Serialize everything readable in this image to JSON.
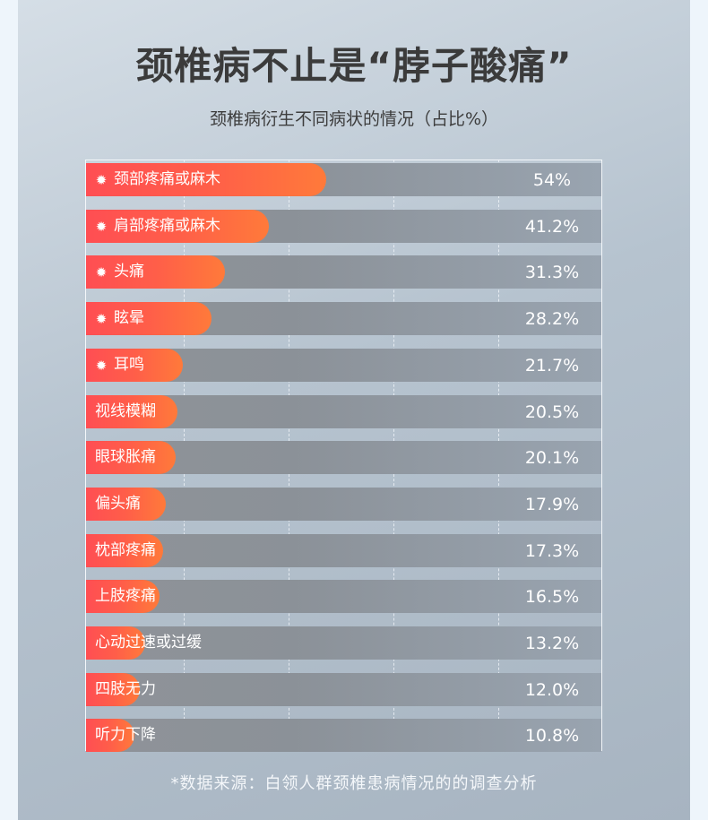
{
  "title": "颈椎病不止是“脖子酸痛”",
  "subtitle": "颈椎病衍生不同病状的情况（占比%）",
  "source": "*数据来源：白领人群颈椎患病情况的的调查分析",
  "colors": {
    "bar_start": "#ff4e53",
    "bar_end": "#ff7a3a",
    "track": "#8f9399"
  },
  "chart_data": {
    "type": "bar",
    "orientation": "horizontal",
    "unit": "%",
    "grid": true,
    "categories": [
      "颈部疼痛或麻木",
      "肩部疼痛或麻木",
      "头痛",
      "眩晕",
      "耳鸣",
      "视线模糊",
      "眼球胀痛",
      "偏头痛",
      "枕部疼痛",
      "上肢疼痛",
      "心动过速或过缓",
      "四肢无力",
      "听力下降"
    ],
    "values": [
      54,
      41.2,
      31.3,
      28.2,
      21.7,
      20.5,
      20.1,
      17.9,
      17.3,
      16.5,
      13.2,
      12.0,
      10.8
    ],
    "value_labels": [
      "54%",
      "41.2%",
      "31.3%",
      "28.2%",
      "21.7%",
      "20.5%",
      "20.1%",
      "17.9%",
      "17.3%",
      "16.5%",
      "13.2%",
      "12.0%",
      "10.8%"
    ],
    "icon_rows": [
      0,
      1,
      2,
      3,
      4
    ],
    "icon": "virus-icon"
  }
}
